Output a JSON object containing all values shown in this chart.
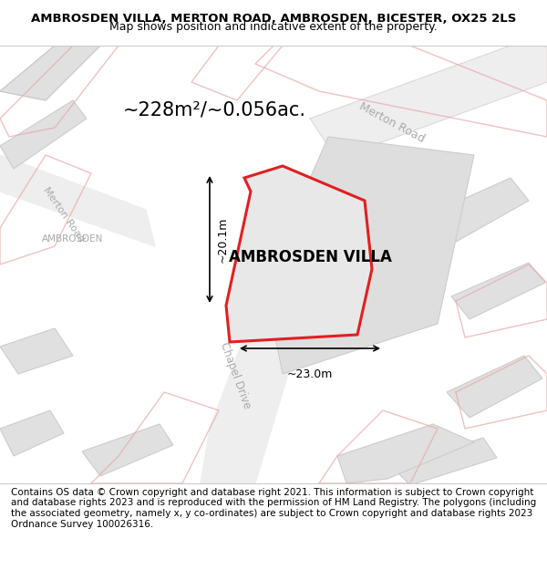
{
  "title": "AMBROSDEN VILLA, MERTON ROAD, AMBROSDEN, BICESTER, OX25 2LS",
  "subtitle": "Map shows position and indicative extent of the property.",
  "area_label": "~228m²/~0.056ac.",
  "property_label": "AMBROSDEN VILLA",
  "dim_width": "~23.0m",
  "dim_height": "~20.1m",
  "bg_color": "#f0efed",
  "map_bg": "#f0efed",
  "road_fill": "#e8e8e8",
  "road_line": "#d0d0d0",
  "red_line": "#e02020",
  "red_fill": "#e8e8e8",
  "property_fill": "#d8d8d8",
  "footer_text": "Contains OS data © Crown copyright and database right 2021. This information is subject to Crown copyright and database rights 2023 and is reproduced with the permission of HM Land Registry. The polygons (including the associated geometry, namely x, y co-ordinates) are subject to Crown copyright and database rights 2023 Ordnance Survey 100026316.",
  "title_fontsize": 9.5,
  "subtitle_fontsize": 9,
  "area_fontsize": 16,
  "property_fontsize": 13,
  "footer_fontsize": 7.5,
  "road_label_color": "#aaaaaa",
  "road_label_fontsize": 10
}
